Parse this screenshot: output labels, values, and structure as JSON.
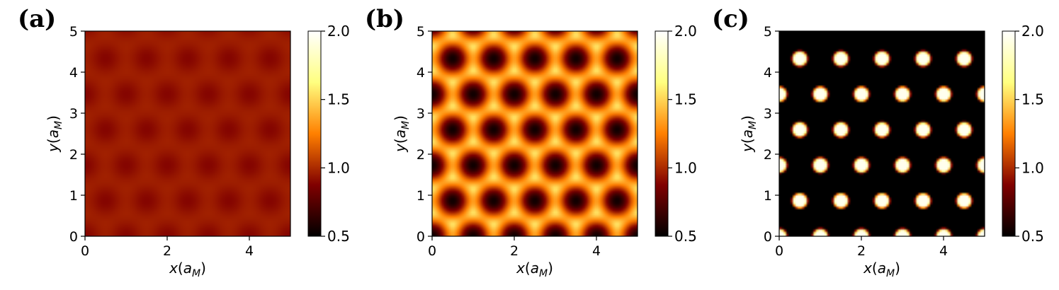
{
  "chart_data": [
    {
      "type": "heatmap",
      "panel_label": "(a)",
      "pattern": "honeycomb-weak",
      "contrast": 0.06,
      "mean_value": 0.93,
      "xlabel": {
        "main": "x",
        "open": "(",
        "sym": "a",
        "sub": "M",
        "close": ")"
      },
      "ylabel": {
        "main": "y",
        "open": "(",
        "sym": "a",
        "sub": "M",
        "close": ")"
      },
      "xlim": [
        0,
        5
      ],
      "ylim": [
        0,
        5
      ],
      "xticks": [
        "0",
        "2",
        "4"
      ],
      "yticks": [
        "0",
        "1",
        "2",
        "3",
        "4",
        "5"
      ],
      "colorbar": {
        "min": 0.5,
        "max": 2.0,
        "ticks": [
          "0.5",
          "1.0",
          "1.5",
          "2.0"
        ],
        "colormap": "afmhot"
      }
    },
    {
      "type": "heatmap",
      "panel_label": "(b)",
      "pattern": "triangular-holes",
      "contrast": 0.75,
      "mean_value": 1.05,
      "xlabel": {
        "main": "x",
        "open": "(",
        "sym": "a",
        "sub": "M",
        "close": ")"
      },
      "ylabel": {
        "main": "y",
        "open": "(",
        "sym": "a",
        "sub": "M",
        "close": ")"
      },
      "xlim": [
        0,
        5
      ],
      "ylim": [
        0,
        5
      ],
      "xticks": [
        "0",
        "2",
        "4"
      ],
      "yticks": [
        "0",
        "1",
        "2",
        "3",
        "4",
        "5"
      ],
      "colorbar": {
        "min": 0.5,
        "max": 2.0,
        "ticks": [
          "0.5",
          "1.0",
          "1.5",
          "2.0"
        ],
        "colormap": "afmhot"
      }
    },
    {
      "type": "heatmap",
      "panel_label": "(c)",
      "pattern": "bright-dots",
      "contrast": 1.0,
      "mean_value": 0.9,
      "xlabel": {
        "main": "x",
        "open": "(",
        "sym": "a",
        "sub": "M",
        "close": ")"
      },
      "ylabel": {
        "main": "y",
        "open": "(",
        "sym": "a",
        "sub": "M",
        "close": ")"
      },
      "xlim": [
        0,
        5
      ],
      "ylim": [
        0,
        5
      ],
      "xticks": [
        "0",
        "2",
        "4"
      ],
      "yticks": [
        "0",
        "1",
        "2",
        "3",
        "4",
        "5"
      ],
      "colorbar": {
        "min": 0.5,
        "max": 2.0,
        "ticks": [
          "0.5",
          "1.0",
          "1.5",
          "2.0"
        ],
        "colormap": "afmhot"
      }
    }
  ]
}
